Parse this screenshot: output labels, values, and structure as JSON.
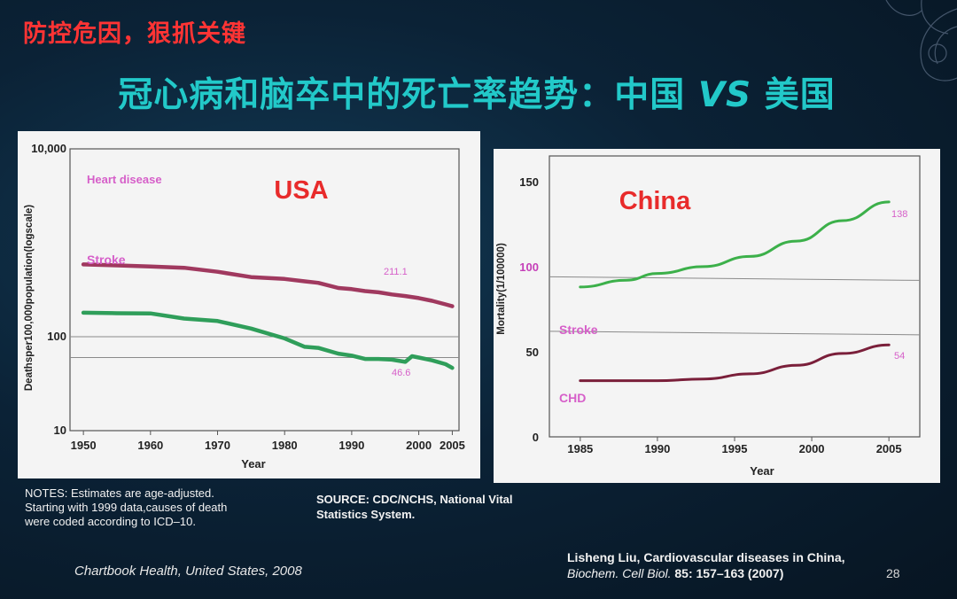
{
  "tag": "防控危因，狠抓关键",
  "title": {
    "main": "冠心病和脑卒中的死亡率趋势：中国 ",
    "vs": "VS",
    "end": " 美国"
  },
  "colors": {
    "heart": "#a0395f",
    "stroke_us": "#2f9e5a",
    "stroke_cn": "#3cb04a",
    "chd": "#7a1f3a",
    "label_pink": "#d65fc9",
    "headline": "#e82b2b",
    "title_teal": "#22c9c9"
  },
  "notes": [
    "NOTES: Estimates are age-adjusted.",
    "Starting with 1999 data,causes of death",
    "were coded according to ICD–10."
  ],
  "source": [
    "SOURCE: CDC/NCHS, National Vital",
    "Statistics System."
  ],
  "chartbook": "Chartbook    Health, United States, 2008",
  "reference": {
    "line1": "Lisheng Liu, Cardiovascular diseases in China,",
    "journal": "Biochem. Cell Biol.",
    "volume": " 85",
    "pages": ": 157–163 (2007)"
  },
  "page_number": "28",
  "chart_data": [
    {
      "type": "line",
      "headline": "USA",
      "xlabel": "Year",
      "ylabel": "Deathsper100,000population(logscale)",
      "y_scale": "log",
      "xlim": [
        1948,
        2006
      ],
      "ylim": [
        10,
        10000
      ],
      "x_ticks": [
        "1950",
        "1960",
        "1970",
        "1980",
        "1990",
        "2000",
        "2005"
      ],
      "y_ticks": [
        "10,000",
        "100",
        "10"
      ],
      "series": [
        {
          "name": "Heart disease",
          "end_label": "211.1",
          "points": [
            [
              1950,
              588
            ],
            [
              1955,
              575
            ],
            [
              1960,
              559
            ],
            [
              1965,
              542
            ],
            [
              1970,
              492
            ],
            [
              1975,
              431
            ],
            [
              1980,
              412
            ],
            [
              1983,
              389
            ],
            [
              1985,
              375
            ],
            [
              1988,
              330
            ],
            [
              1990,
              321
            ],
            [
              1992,
              306
            ],
            [
              1994,
              297
            ],
            [
              1996,
              282
            ],
            [
              1998,
              271
            ],
            [
              2000,
              258
            ],
            [
              2002,
              241
            ],
            [
              2004,
              221
            ],
            [
              2005,
              211.1
            ]
          ]
        },
        {
          "name": "Stroke",
          "end_label": "46.6",
          "points": [
            [
              1950,
              180
            ],
            [
              1955,
              178
            ],
            [
              1960,
              177
            ],
            [
              1965,
              156
            ],
            [
              1970,
              147
            ],
            [
              1975,
              122
            ],
            [
              1980,
              96
            ],
            [
              1983,
              78
            ],
            [
              1985,
              76
            ],
            [
              1988,
              66
            ],
            [
              1990,
              63
            ],
            [
              1992,
              58
            ],
            [
              1994,
              58
            ],
            [
              1996,
              57
            ],
            [
              1998,
              54
            ],
            [
              1999,
              62
            ],
            [
              2000,
              60
            ],
            [
              2002,
              56
            ],
            [
              2004,
              51
            ],
            [
              2005,
              46.6
            ]
          ]
        }
      ]
    },
    {
      "type": "line",
      "headline": "China",
      "xlabel": "Year",
      "ylabel": "Mortality(1/100000)",
      "xlim": [
        1983,
        2007
      ],
      "ylim": [
        0,
        165
      ],
      "x_ticks": [
        "1985",
        "1990",
        "1995",
        "2000",
        "2005"
      ],
      "y_ticks": [
        "150",
        "100",
        "50",
        "0"
      ],
      "series": [
        {
          "name": "Stroke",
          "end_label": "138",
          "points": [
            [
              1985,
              88
            ],
            [
              1988,
              92
            ],
            [
              1990,
              96
            ],
            [
              1993,
              100
            ],
            [
              1996,
              106
            ],
            [
              1999,
              115
            ],
            [
              2002,
              127
            ],
            [
              2005,
              138
            ]
          ]
        },
        {
          "name": "CHD",
          "end_label": "54",
          "points": [
            [
              1985,
              33
            ],
            [
              1988,
              33
            ],
            [
              1990,
              33
            ],
            [
              1993,
              34
            ],
            [
              1996,
              37
            ],
            [
              1999,
              42
            ],
            [
              2002,
              49
            ],
            [
              2005,
              54
            ]
          ]
        }
      ]
    }
  ]
}
